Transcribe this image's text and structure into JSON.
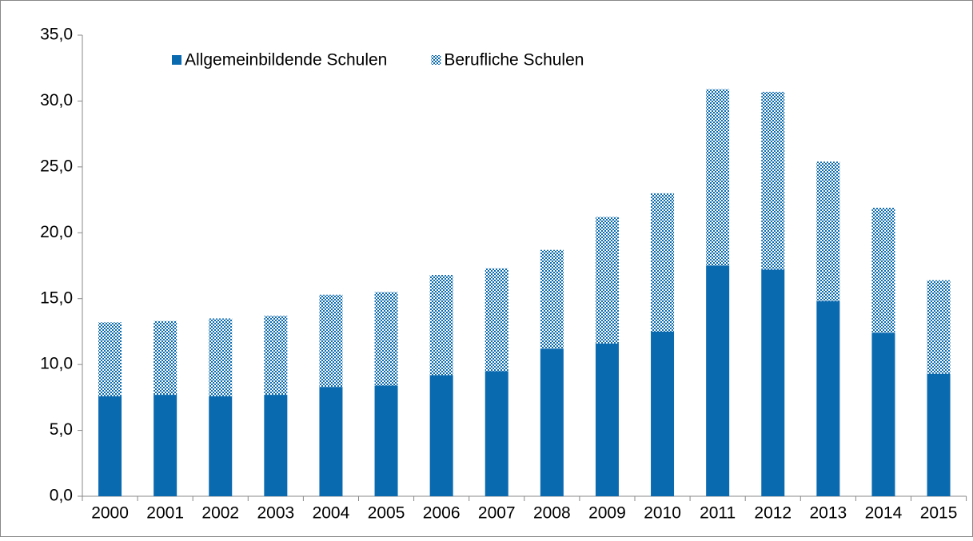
{
  "chart_data": {
    "type": "stacked_bar",
    "categories": [
      "2000",
      "2001",
      "2002",
      "2003",
      "2004",
      "2005",
      "2006",
      "2007",
      "2008",
      "2009",
      "2010",
      "2011",
      "2012",
      "2013",
      "2014",
      "2015"
    ],
    "series": [
      {
        "name": "Allgemeinbildende Schulen",
        "color": "#0a6ab0",
        "values": [
          7.6,
          7.7,
          7.6,
          7.7,
          8.3,
          8.4,
          9.2,
          9.5,
          11.2,
          11.6,
          12.5,
          17.5,
          17.2,
          14.8,
          12.4,
          9.3
        ]
      },
      {
        "name": "Berufliche Schulen",
        "color": "#0a6ab0",
        "pattern": "dotted",
        "values": [
          5.6,
          5.6,
          5.9,
          6.0,
          7.0,
          7.1,
          7.6,
          7.8,
          7.5,
          9.6,
          10.5,
          13.4,
          13.5,
          10.6,
          9.5,
          7.1
        ]
      }
    ],
    "ylim": [
      0,
      35
    ],
    "yticks": [
      {
        "value": 0,
        "label": "0,0"
      },
      {
        "value": 5,
        "label": "5,0"
      },
      {
        "value": 10,
        "label": "10,0"
      },
      {
        "value": 15,
        "label": "15,0"
      },
      {
        "value": 20,
        "label": "20,0"
      },
      {
        "value": 25,
        "label": "25,0"
      },
      {
        "value": 30,
        "label": "30,0"
      },
      {
        "value": 35,
        "label": "35,0"
      }
    ],
    "grid": false,
    "legend": "top"
  }
}
